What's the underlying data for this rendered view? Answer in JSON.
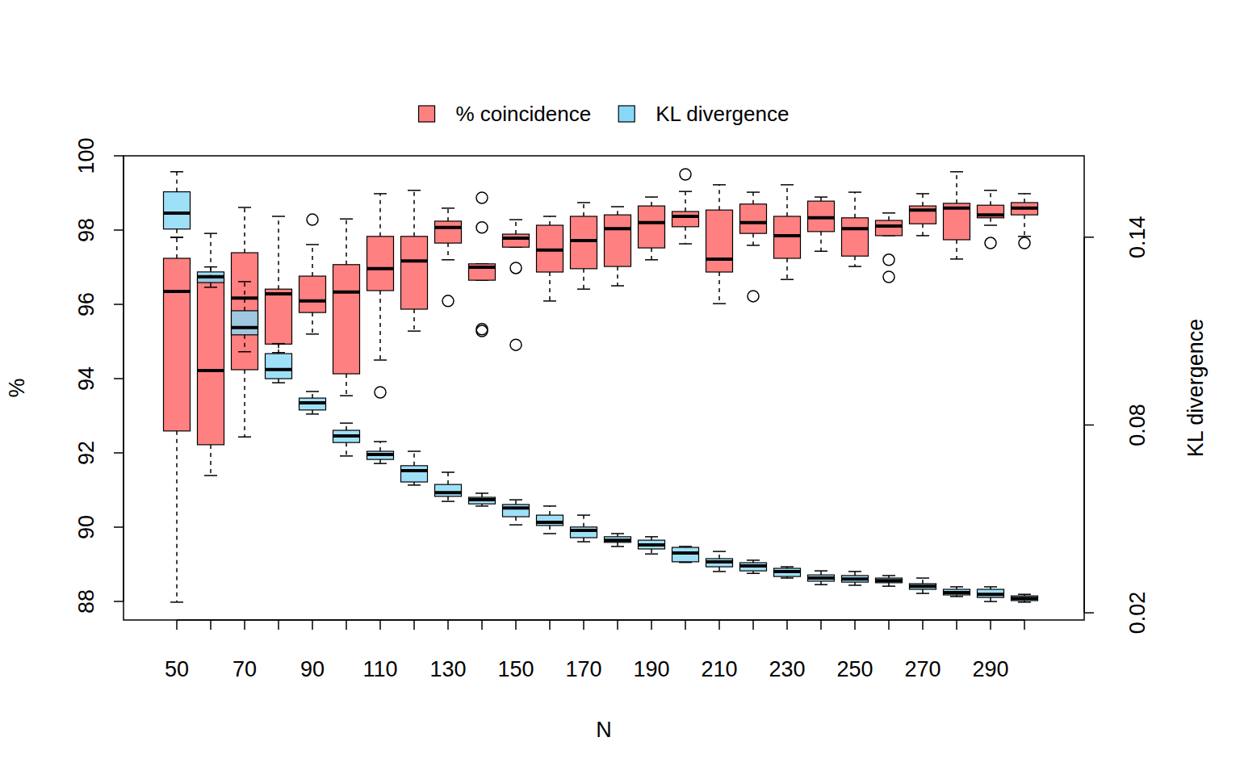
{
  "chart_data": {
    "type": "boxplot",
    "x_label": "N",
    "y_label": "%",
    "y2_label": "KL divergence",
    "legend": "top",
    "categories": [
      "50",
      null,
      "70",
      null,
      "90",
      null,
      "110",
      null,
      "130",
      null,
      "150",
      null,
      "170",
      null,
      "190",
      null,
      "210",
      null,
      "230",
      null,
      "250",
      null,
      "270",
      null,
      "290",
      null
    ],
    "ylim": [
      87.5,
      100
    ],
    "yticks": [
      88,
      90,
      92,
      94,
      96,
      98,
      100
    ],
    "y2lim": [
      0.0177,
      0.166
    ],
    "y2ticks": [
      0.02,
      0.08,
      0.14
    ],
    "series": [
      {
        "name": "% coincidence",
        "color": "#ff8080",
        "axis": "y",
        "min": [
          87.98,
          91.39,
          92.43,
          94.7,
          95.2,
          93.54,
          94.5,
          95.28,
          97.2,
          96.65,
          97.54,
          96.09,
          96.41,
          96.5,
          97.2,
          97.63,
          96.02,
          97.59,
          96.67,
          97.43,
          97.02,
          97.85,
          97.85,
          97.22,
          98.13,
          97.83
        ],
        "q1": [
          92.59,
          92.22,
          94.24,
          94.93,
          95.78,
          94.13,
          96.37,
          95.87,
          97.65,
          96.65,
          97.54,
          96.87,
          96.96,
          97.02,
          97.52,
          98.09,
          96.87,
          97.91,
          97.24,
          97.96,
          97.3,
          97.85,
          98.17,
          97.74,
          98.33,
          98.41
        ],
        "median": [
          96.35,
          94.22,
          96.17,
          96.28,
          96.09,
          96.33,
          96.96,
          97.17,
          98.07,
          97.0,
          97.78,
          97.46,
          97.72,
          98.04,
          98.2,
          98.37,
          97.22,
          98.2,
          97.85,
          98.33,
          98.04,
          98.11,
          98.54,
          98.59,
          98.41,
          98.59
        ],
        "q3": [
          97.24,
          96.7,
          97.39,
          96.41,
          96.76,
          97.07,
          97.83,
          97.83,
          98.24,
          97.09,
          97.89,
          98.13,
          98.37,
          98.41,
          98.65,
          98.5,
          98.54,
          98.7,
          98.37,
          98.78,
          98.33,
          98.26,
          98.65,
          98.72,
          98.67,
          98.74
        ],
        "max": [
          97.8,
          97.91,
          98.61,
          98.37,
          97.61,
          98.3,
          98.98,
          99.07,
          98.59,
          97.09,
          98.28,
          98.37,
          98.74,
          98.63,
          98.89,
          99.04,
          99.22,
          99.02,
          99.22,
          98.89,
          99.02,
          98.46,
          98.98,
          99.57,
          99.07,
          98.98
        ],
        "outliers": [
          [],
          [],
          [],
          [],
          [
            98.28
          ],
          [],
          [
            93.63
          ],
          [],
          [
            96.09
          ],
          [
            98.87,
            98.07,
            95.33,
            95.28
          ],
          [
            96.98,
            94.91
          ],
          [],
          [],
          [],
          [],
          [
            99.5
          ],
          [],
          [
            96.22
          ],
          [],
          [],
          [],
          [
            97.2,
            96.74
          ],
          [],
          [],
          [
            97.65
          ],
          [
            97.65
          ]
        ]
      },
      {
        "name": "KL divergence",
        "color": "#87d8f8",
        "axis": "y2",
        "min": [
          0.14,
          0.124,
          0.1034,
          0.0935,
          0.0835,
          0.0701,
          0.0677,
          0.0608,
          0.0556,
          0.0541,
          0.0481,
          0.0453,
          0.0427,
          0.0412,
          0.0388,
          0.0361,
          0.0332,
          0.0326,
          0.0311,
          0.029,
          0.0288,
          0.0285,
          0.0262,
          0.0252,
          0.0236,
          0.0234
        ],
        "q1": [
          0.1426,
          0.1255,
          0.1088,
          0.0948,
          0.0848,
          0.0744,
          0.069,
          0.0618,
          0.0572,
          0.0548,
          0.0507,
          0.0479,
          0.044,
          0.0425,
          0.0404,
          0.0363,
          0.0347,
          0.0334,
          0.0316,
          0.0301,
          0.0298,
          0.0296,
          0.0275,
          0.0257,
          0.0249,
          0.0239
        ],
        "median": [
          0.1477,
          0.1274,
          0.1111,
          0.0977,
          0.0871,
          0.0765,
          0.0706,
          0.0654,
          0.0584,
          0.0561,
          0.0535,
          0.0489,
          0.0463,
          0.0432,
          0.0417,
          0.0391,
          0.0363,
          0.035,
          0.0332,
          0.0311,
          0.0308,
          0.0303,
          0.0285,
          0.0265,
          0.0259,
          0.0246
        ],
        "q3": [
          0.1545,
          0.1289,
          0.1165,
          0.1028,
          0.0886,
          0.0783,
          0.0716,
          0.067,
          0.061,
          0.0569,
          0.0546,
          0.0512,
          0.0474,
          0.0443,
          0.0432,
          0.0409,
          0.0373,
          0.036,
          0.0342,
          0.0321,
          0.0319,
          0.0311,
          0.0293,
          0.0275,
          0.0275,
          0.0254
        ],
        "max": [
          0.1609,
          0.1305,
          0.1258,
          0.106,
          0.0907,
          0.0806,
          0.0747,
          0.0716,
          0.0649,
          0.0582,
          0.0561,
          0.0541,
          0.0512,
          0.0453,
          0.0443,
          0.0412,
          0.0396,
          0.0368,
          0.0347,
          0.0334,
          0.0332,
          0.0319,
          0.0311,
          0.0283,
          0.0283,
          0.0259
        ],
        "outliers": [
          [],
          [],
          [],
          [],
          [],
          [],
          [],
          [],
          [],
          [],
          [],
          [],
          [],
          [],
          [],
          [],
          [],
          [],
          [],
          [],
          [],
          [],
          [],
          [],
          [],
          []
        ]
      }
    ]
  }
}
